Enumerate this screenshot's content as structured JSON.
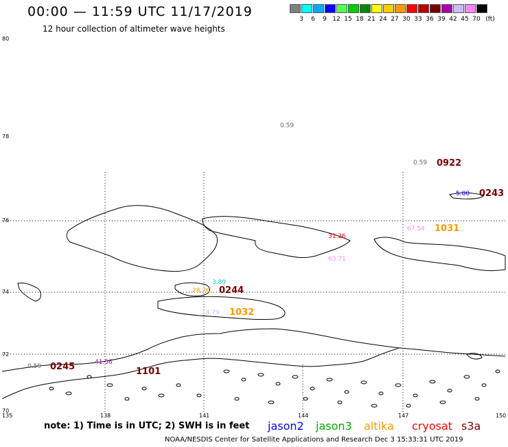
{
  "header": {
    "title": "00:00 — 11:59 UTC 11/17/2019",
    "subtitle": "12 hour collection of altimeter wave heights"
  },
  "scale": {
    "unit": "(ft)",
    "colors": [
      "#808080",
      "#00ffff",
      "#00aaff",
      "#0000ff",
      "#55ff55",
      "#00cc00",
      "#008800",
      "#ffff00",
      "#ffcc00",
      "#ff9900",
      "#ff0000",
      "#bb0000",
      "#770000",
      "#aa00aa",
      "#ccbbff",
      "#ff88ff",
      "#000000"
    ],
    "labels": [
      "3",
      "6",
      "9",
      "12",
      "15",
      "18",
      "21",
      "24",
      "27",
      "30",
      "33",
      "36",
      "39",
      "42",
      "45",
      "70"
    ]
  },
  "axes": {
    "lat": [
      "80",
      "78",
      "76",
      "74",
      "72",
      "70"
    ],
    "lon": [
      "135",
      "138",
      "141",
      "144",
      "147",
      "150"
    ]
  },
  "annotations": [
    {
      "text": "0.59",
      "color": "#666666"
    },
    {
      "text": "0.59",
      "color": "#666666"
    },
    {
      "text": "0922",
      "color": "#770000",
      "bold": true
    },
    {
      "text": "5.80",
      "color": "#0000ff"
    },
    {
      "text": "0243",
      "color": "#770000",
      "bold": true
    },
    {
      "text": "67.54",
      "color": "#ff88ff"
    },
    {
      "text": "1031",
      "color": "#ff9900",
      "bold": true
    },
    {
      "text": "31.26",
      "color": "#ff0000"
    },
    {
      "text": "63.71",
      "color": "#ff88ff"
    },
    {
      "text": "3.89",
      "color": "#00cccc"
    },
    {
      "text": "28.76",
      "color": "#ff9900"
    },
    {
      "text": "0244",
      "color": "#770000",
      "bold": true
    },
    {
      "text": "14.79",
      "color": "#ccbbff"
    },
    {
      "text": "1032",
      "color": "#ff9900",
      "bold": true
    },
    {
      "text": "0.59",
      "color": "#666666"
    },
    {
      "text": "0245",
      "color": "#770000",
      "bold": true
    },
    {
      "text": "41.56",
      "color": "#aa00aa"
    },
    {
      "text": "1101",
      "color": "#770000",
      "bold": true
    }
  ],
  "legend": {
    "note": "note: 1) Time is in UTC; 2) SWH is in feet",
    "satellites": [
      {
        "name": "jason2",
        "color": "#0000ff"
      },
      {
        "name": "jason3",
        "color": "#00aa00"
      },
      {
        "name": "altika",
        "color": "#ff9900"
      },
      {
        "name": "cryosat",
        "color": "#ff0000"
      },
      {
        "name": "s3a",
        "color": "#770000"
      }
    ]
  },
  "footer": {
    "credit": "NOAA/NESDIS Center for Satellite Applications and Research    Dec  3 15:33:31 UTC 2019"
  }
}
